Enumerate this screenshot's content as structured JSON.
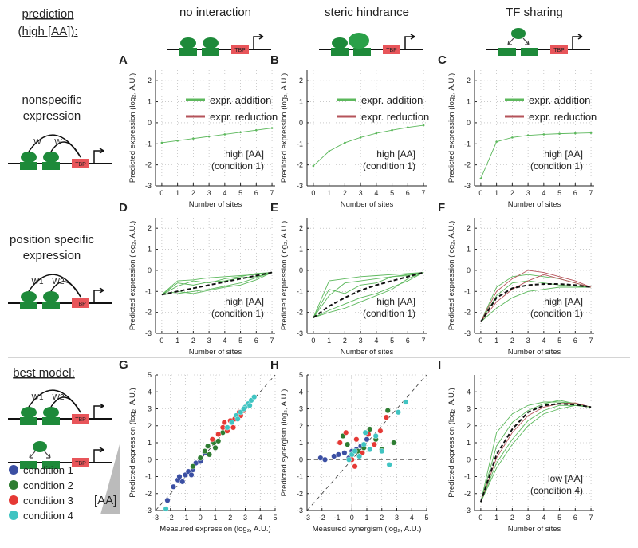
{
  "header": {
    "title_line1": "prediction",
    "title_line2": "(high [AA]):",
    "best_model": "best model:"
  },
  "columns": [
    "no interaction",
    "steric hindrance",
    "TF sharing"
  ],
  "rows": [
    {
      "line1": "nonspecific",
      "line2": "expression"
    },
    {
      "line1": "position specific",
      "line2": "expression"
    }
  ],
  "diagram": {
    "tbp": "TBP",
    "w": "W",
    "w1": "W1",
    "w2": "W2"
  },
  "aa_label": "[AA]",
  "chart_data": [
    {
      "type": "line",
      "label": "A",
      "x": [
        0,
        1,
        2,
        3,
        4,
        5,
        6,
        7
      ],
      "xlim": [
        -0.4,
        7.2
      ],
      "xticks": [
        0,
        1,
        2,
        3,
        4,
        5,
        6,
        7
      ],
      "ylim": [
        -3,
        2.5
      ],
      "yticks": [
        -3,
        -2,
        -1,
        0,
        1,
        2
      ],
      "grid": true,
      "xlabel": "Number of sites",
      "ylabel": "Predicted expression (log₂, A.U.)",
      "annotation": [
        "high [AA]",
        "(condition 1)"
      ],
      "legend": [
        {
          "name": "expr. addition",
          "color": "#5cb85c"
        },
        {
          "name": "expr. reduction",
          "color": "#b5535a"
        }
      ],
      "series": [
        {
          "color": "#5cb85c",
          "markers": true,
          "values": [
            -0.95,
            -0.85,
            -0.75,
            -0.65,
            -0.55,
            -0.45,
            -0.35,
            -0.25
          ]
        }
      ]
    },
    {
      "type": "line",
      "label": "B",
      "x": [
        0,
        1,
        2,
        3,
        4,
        5,
        6,
        7
      ],
      "xlim": [
        -0.4,
        7.2
      ],
      "xticks": [
        0,
        1,
        2,
        3,
        4,
        5,
        6,
        7
      ],
      "ylim": [
        -3,
        2.5
      ],
      "yticks": [
        -3,
        -2,
        -1,
        0,
        1,
        2
      ],
      "grid": true,
      "xlabel": "Number of sites",
      "ylabel": "Predicted expression (log₂, A.U.)",
      "annotation": [
        "high [AA]",
        "(condition 1)"
      ],
      "legend": [
        {
          "name": "expr. addition",
          "color": "#5cb85c"
        },
        {
          "name": "expr. reduction",
          "color": "#b5535a"
        }
      ],
      "series": [
        {
          "color": "#5cb85c",
          "markers": true,
          "values": [
            -2.05,
            -1.35,
            -0.95,
            -0.7,
            -0.5,
            -0.35,
            -0.22,
            -0.12
          ]
        }
      ]
    },
    {
      "type": "line",
      "label": "C",
      "x": [
        0,
        1,
        2,
        3,
        4,
        5,
        6,
        7
      ],
      "xlim": [
        -0.4,
        7.2
      ],
      "xticks": [
        0,
        1,
        2,
        3,
        4,
        5,
        6,
        7
      ],
      "ylim": [
        -3,
        2.5
      ],
      "yticks": [
        -3,
        -2,
        -1,
        0,
        1,
        2
      ],
      "grid": true,
      "xlabel": "Number of sites",
      "ylabel": "Predicted expression (log₂, A.U.)",
      "annotation": [
        "high [AA]",
        "(condition 1)"
      ],
      "legend": [
        {
          "name": "expr. addition",
          "color": "#5cb85c"
        },
        {
          "name": "expr. reduction",
          "color": "#b5535a"
        }
      ],
      "series": [
        {
          "color": "#5cb85c",
          "markers": true,
          "values": [
            -2.65,
            -0.9,
            -0.7,
            -0.6,
            -0.55,
            -0.52,
            -0.5,
            -0.48
          ]
        }
      ]
    },
    {
      "type": "line",
      "label": "D",
      "x": [
        0,
        1,
        2,
        3,
        4,
        5,
        6,
        7
      ],
      "xlim": [
        -0.4,
        7.2
      ],
      "xticks": [
        0,
        1,
        2,
        3,
        4,
        5,
        6,
        7
      ],
      "ylim": [
        -3,
        2.5
      ],
      "yticks": [
        -3,
        -2,
        -1,
        0,
        1,
        2
      ],
      "grid": true,
      "xlabel": "Number of sites",
      "ylabel": "Predicted expression (log₂, A.U.)",
      "annotation": [
        "high [AA]",
        "(condition 1)"
      ],
      "series": [
        {
          "color": "#5cb85c",
          "values": [
            -1.15,
            -0.5,
            -0.45,
            -0.35,
            -0.3,
            -0.25,
            -0.2,
            -0.1
          ]
        },
        {
          "color": "#5cb85c",
          "values": [
            -1.15,
            -1.1,
            -1.0,
            -0.9,
            -0.75,
            -0.6,
            -0.35,
            -0.1
          ]
        },
        {
          "color": "#5cb85c",
          "values": [
            -1.15,
            -0.75,
            -0.5,
            -0.6,
            -0.4,
            -0.3,
            -0.15,
            -0.1
          ]
        },
        {
          "color": "#5cb85c",
          "values": [
            -1.15,
            -1.0,
            -1.1,
            -0.95,
            -0.8,
            -0.7,
            -0.45,
            -0.1
          ]
        },
        {
          "color": "#5cb85c",
          "values": [
            -1.15,
            -0.6,
            -0.7,
            -0.55,
            -0.5,
            -0.35,
            -0.3,
            -0.1
          ]
        },
        {
          "color": "#111111",
          "dashed": true,
          "values": [
            -1.15,
            -1.0,
            -0.85,
            -0.7,
            -0.55,
            -0.4,
            -0.25,
            -0.1
          ]
        }
      ]
    },
    {
      "type": "line",
      "label": "E",
      "x": [
        0,
        1,
        2,
        3,
        4,
        5,
        6,
        7
      ],
      "xlim": [
        -0.4,
        7.2
      ],
      "xticks": [
        0,
        1,
        2,
        3,
        4,
        5,
        6,
        7
      ],
      "ylim": [
        -3,
        2.5
      ],
      "yticks": [
        -3,
        -2,
        -1,
        0,
        1,
        2
      ],
      "grid": true,
      "xlabel": "Number of sites",
      "ylabel": "Predicted expression (log₂, A.U.)",
      "annotation": [
        "high [AA]",
        "(condition 1)"
      ],
      "series": [
        {
          "color": "#5cb85c",
          "values": [
            -2.25,
            -0.5,
            -0.4,
            -0.3,
            -0.25,
            -0.2,
            -0.15,
            -0.1
          ]
        },
        {
          "color": "#5cb85c",
          "values": [
            -2.25,
            -1.9,
            -1.6,
            -1.3,
            -1.1,
            -0.8,
            -0.5,
            -0.1
          ]
        },
        {
          "color": "#5cb85c",
          "values": [
            -2.25,
            -1.2,
            -0.6,
            -0.5,
            -0.4,
            -0.3,
            -0.2,
            -0.1
          ]
        },
        {
          "color": "#5cb85c",
          "values": [
            -2.25,
            -2.0,
            -1.8,
            -1.5,
            -1.2,
            -0.9,
            -0.4,
            -0.1
          ]
        },
        {
          "color": "#5cb85c",
          "values": [
            -2.25,
            -0.9,
            -1.1,
            -0.7,
            -0.6,
            -0.3,
            -0.25,
            -0.1
          ]
        },
        {
          "color": "#111111",
          "dashed": true,
          "values": [
            -2.25,
            -1.7,
            -1.3,
            -0.95,
            -0.7,
            -0.5,
            -0.3,
            -0.1
          ]
        }
      ]
    },
    {
      "type": "line",
      "label": "F",
      "x": [
        0,
        1,
        2,
        3,
        4,
        5,
        6,
        7
      ],
      "xlim": [
        -0.4,
        7.2
      ],
      "xticks": [
        0,
        1,
        2,
        3,
        4,
        5,
        6,
        7
      ],
      "ylim": [
        -3,
        2.5
      ],
      "yticks": [
        -3,
        -2,
        -1,
        0,
        1,
        2
      ],
      "grid": true,
      "xlabel": "Number of sites",
      "ylabel": "Predicted expression (log₂, A.U.)",
      "annotation": [
        "high [AA]",
        "(condition 1)"
      ],
      "series": [
        {
          "color": "#5cb85c",
          "values": [
            -2.45,
            -0.8,
            -0.3,
            -0.2,
            -0.3,
            -0.4,
            -0.6,
            -0.8
          ]
        },
        {
          "color": "#5cb85c",
          "values": [
            -2.45,
            -1.8,
            -1.3,
            -1.0,
            -0.9,
            -0.8,
            -0.8,
            -0.8
          ]
        },
        {
          "color": "#5cb85c",
          "values": [
            -2.45,
            -1.2,
            -0.6,
            -0.5,
            -0.6,
            -0.7,
            -0.75,
            -0.8
          ]
        },
        {
          "color": "#b5535a",
          "values": [
            -2.45,
            -1.0,
            -0.4,
            0.0,
            -0.1,
            -0.3,
            -0.5,
            -0.8
          ]
        },
        {
          "color": "#b5535a",
          "values": [
            -2.45,
            -1.5,
            -0.9,
            -0.5,
            -0.2,
            -0.4,
            -0.6,
            -0.8
          ]
        },
        {
          "color": "#111111",
          "dashed": true,
          "values": [
            -2.45,
            -1.3,
            -0.85,
            -0.7,
            -0.65,
            -0.65,
            -0.7,
            -0.8
          ]
        }
      ]
    },
    {
      "type": "scatter",
      "label": "G",
      "xlim": [
        -3,
        5
      ],
      "xticks": [
        -3,
        -2,
        -1,
        0,
        1,
        2,
        3,
        4,
        5
      ],
      "ylim": [
        -3,
        5
      ],
      "yticks": [
        -3,
        -2,
        -1,
        0,
        1,
        2,
        3,
        4,
        5
      ],
      "grid": true,
      "xlabel": "Measured expression (log₂, A.U.)",
      "ylabel": "Predicted expression (log₂, A.U.)",
      "series": [
        {
          "name": "condition 1",
          "color": "#3b4fa3",
          "x": [
            -2.2,
            -1.8,
            -1.5,
            -1.2,
            -1,
            -0.8,
            -0.5,
            -0.3,
            0,
            0.3,
            -1.4,
            -0.6
          ],
          "y": [
            -2.4,
            -1.6,
            -1.2,
            -1.3,
            -0.9,
            -0.7,
            -0.6,
            -0.2,
            -0.1,
            0.4,
            -1.0,
            -0.9
          ]
        },
        {
          "name": "condition 2",
          "color": "#2e7d32",
          "x": [
            -0.5,
            0,
            0.3,
            0.6,
            0.9,
            1.2,
            1.5,
            1.8,
            2.1,
            2.4,
            1.0,
            0.5
          ],
          "y": [
            -0.4,
            0.1,
            0.5,
            0.3,
            1.0,
            1.1,
            1.6,
            1.7,
            2.3,
            2.5,
            0.7,
            0.8
          ]
        },
        {
          "name": "condition 3",
          "color": "#e53935",
          "x": [
            0.8,
            1.2,
            1.5,
            1.8,
            2.0,
            2.3,
            2.6,
            2.9,
            3.1,
            1.6,
            2.2,
            2.7
          ],
          "y": [
            1.2,
            1.5,
            1.9,
            1.7,
            2.3,
            2.4,
            2.8,
            2.9,
            3.2,
            2.2,
            1.9,
            2.6
          ]
        },
        {
          "name": "condition 4",
          "color": "#40c4c2",
          "x": [
            1.8,
            2.1,
            2.4,
            2.7,
            3.0,
            3.2,
            3.4,
            3.6,
            2.5,
            2.9,
            3.3,
            -2.3
          ],
          "y": [
            1.9,
            2.2,
            2.6,
            2.8,
            3.1,
            3.3,
            3.5,
            3.7,
            2.4,
            3.0,
            3.2,
            -2.9
          ]
        }
      ]
    },
    {
      "type": "scatter",
      "label": "H",
      "xlim": [
        -3,
        5
      ],
      "xticks": [
        -3,
        -2,
        -1,
        0,
        1,
        2,
        3,
        4,
        5
      ],
      "ylim": [
        -3,
        5
      ],
      "yticks": [
        -3,
        -2,
        -1,
        0,
        1,
        2,
        3,
        4,
        5
      ],
      "grid": true,
      "zero_lines": true,
      "xlabel": "Measured synergism (log₂, A.U.)",
      "ylabel": "Predicted synergism (log₂, A.U.)",
      "series": [
        {
          "name": "condition 1",
          "color": "#3b4fa3",
          "x": [
            -2.1,
            -1.8,
            -1.2,
            -0.9,
            -0.5,
            -0.2,
            0,
            0.3,
            0.6,
            1.0
          ],
          "y": [
            0.1,
            0.0,
            0.2,
            0.3,
            0.4,
            0.1,
            0.5,
            0.6,
            0.8,
            1.2
          ]
        },
        {
          "name": "condition 2",
          "color": "#2e7d32",
          "x": [
            -0.6,
            -0.3,
            0,
            0.4,
            0.8,
            1.2,
            1.6,
            2.0,
            2.4,
            2.8
          ],
          "y": [
            1.4,
            0.9,
            0.3,
            0.5,
            0.7,
            1.8,
            1.2,
            0.6,
            2.9,
            1.0
          ]
        },
        {
          "name": "condition 3",
          "color": "#e53935",
          "x": [
            -0.8,
            -0.4,
            0,
            0.3,
            0.7,
            1.1,
            1.5,
            1.9,
            2.3,
            0.2
          ],
          "y": [
            1.0,
            1.6,
            0.0,
            1.2,
            0.4,
            1.5,
            0.9,
            1.7,
            2.5,
            -0.4
          ]
        },
        {
          "name": "condition 4",
          "color": "#40c4c2",
          "x": [
            -0.2,
            0,
            0.2,
            0.5,
            0.8,
            1.2,
            1.6,
            2.0,
            2.5,
            3.1,
            3.6,
            0.9
          ],
          "y": [
            0.0,
            0.3,
            0.5,
            0.2,
            0.9,
            0.6,
            1.4,
            0.5,
            -0.3,
            2.8,
            3.4,
            1.6
          ]
        }
      ]
    },
    {
      "type": "line",
      "label": "I",
      "x": [
        0,
        1,
        2,
        3,
        4,
        5,
        6,
        7
      ],
      "xlim": [
        -0.4,
        7.2
      ],
      "xticks": [
        0,
        1,
        2,
        3,
        4,
        5,
        6,
        7
      ],
      "ylim": [
        -3,
        5
      ],
      "yticks": [
        -3,
        -2,
        -1,
        0,
        1,
        2,
        3,
        4
      ],
      "grid": true,
      "xlabel": "Number of sites",
      "ylabel": "Predicted expression (log₂, A.U.)",
      "annotation": [
        "low [AA]",
        "(condition 4)"
      ],
      "series": [
        {
          "color": "#5cb85c",
          "values": [
            -2.5,
            1.6,
            2.7,
            3.2,
            3.4,
            3.4,
            3.3,
            3.1
          ]
        },
        {
          "color": "#5cb85c",
          "values": [
            -2.5,
            0.8,
            2.2,
            2.9,
            3.3,
            3.5,
            3.3,
            3.1
          ]
        },
        {
          "color": "#5cb85c",
          "values": [
            -2.5,
            -0.2,
            1.2,
            2.3,
            2.9,
            3.2,
            3.2,
            3.1
          ]
        },
        {
          "color": "#b5535a",
          "values": [
            -2.5,
            0.1,
            1.6,
            2.6,
            3.1,
            3.3,
            3.35,
            3.1
          ]
        },
        {
          "color": "#5cb85c",
          "values": [
            -2.5,
            -0.5,
            0.9,
            2.0,
            2.7,
            3.0,
            3.2,
            3.1
          ]
        },
        {
          "color": "#111111",
          "dashed": true,
          "values": [
            -2.5,
            0.3,
            1.8,
            2.8,
            3.2,
            3.3,
            3.25,
            3.1
          ]
        }
      ]
    }
  ]
}
